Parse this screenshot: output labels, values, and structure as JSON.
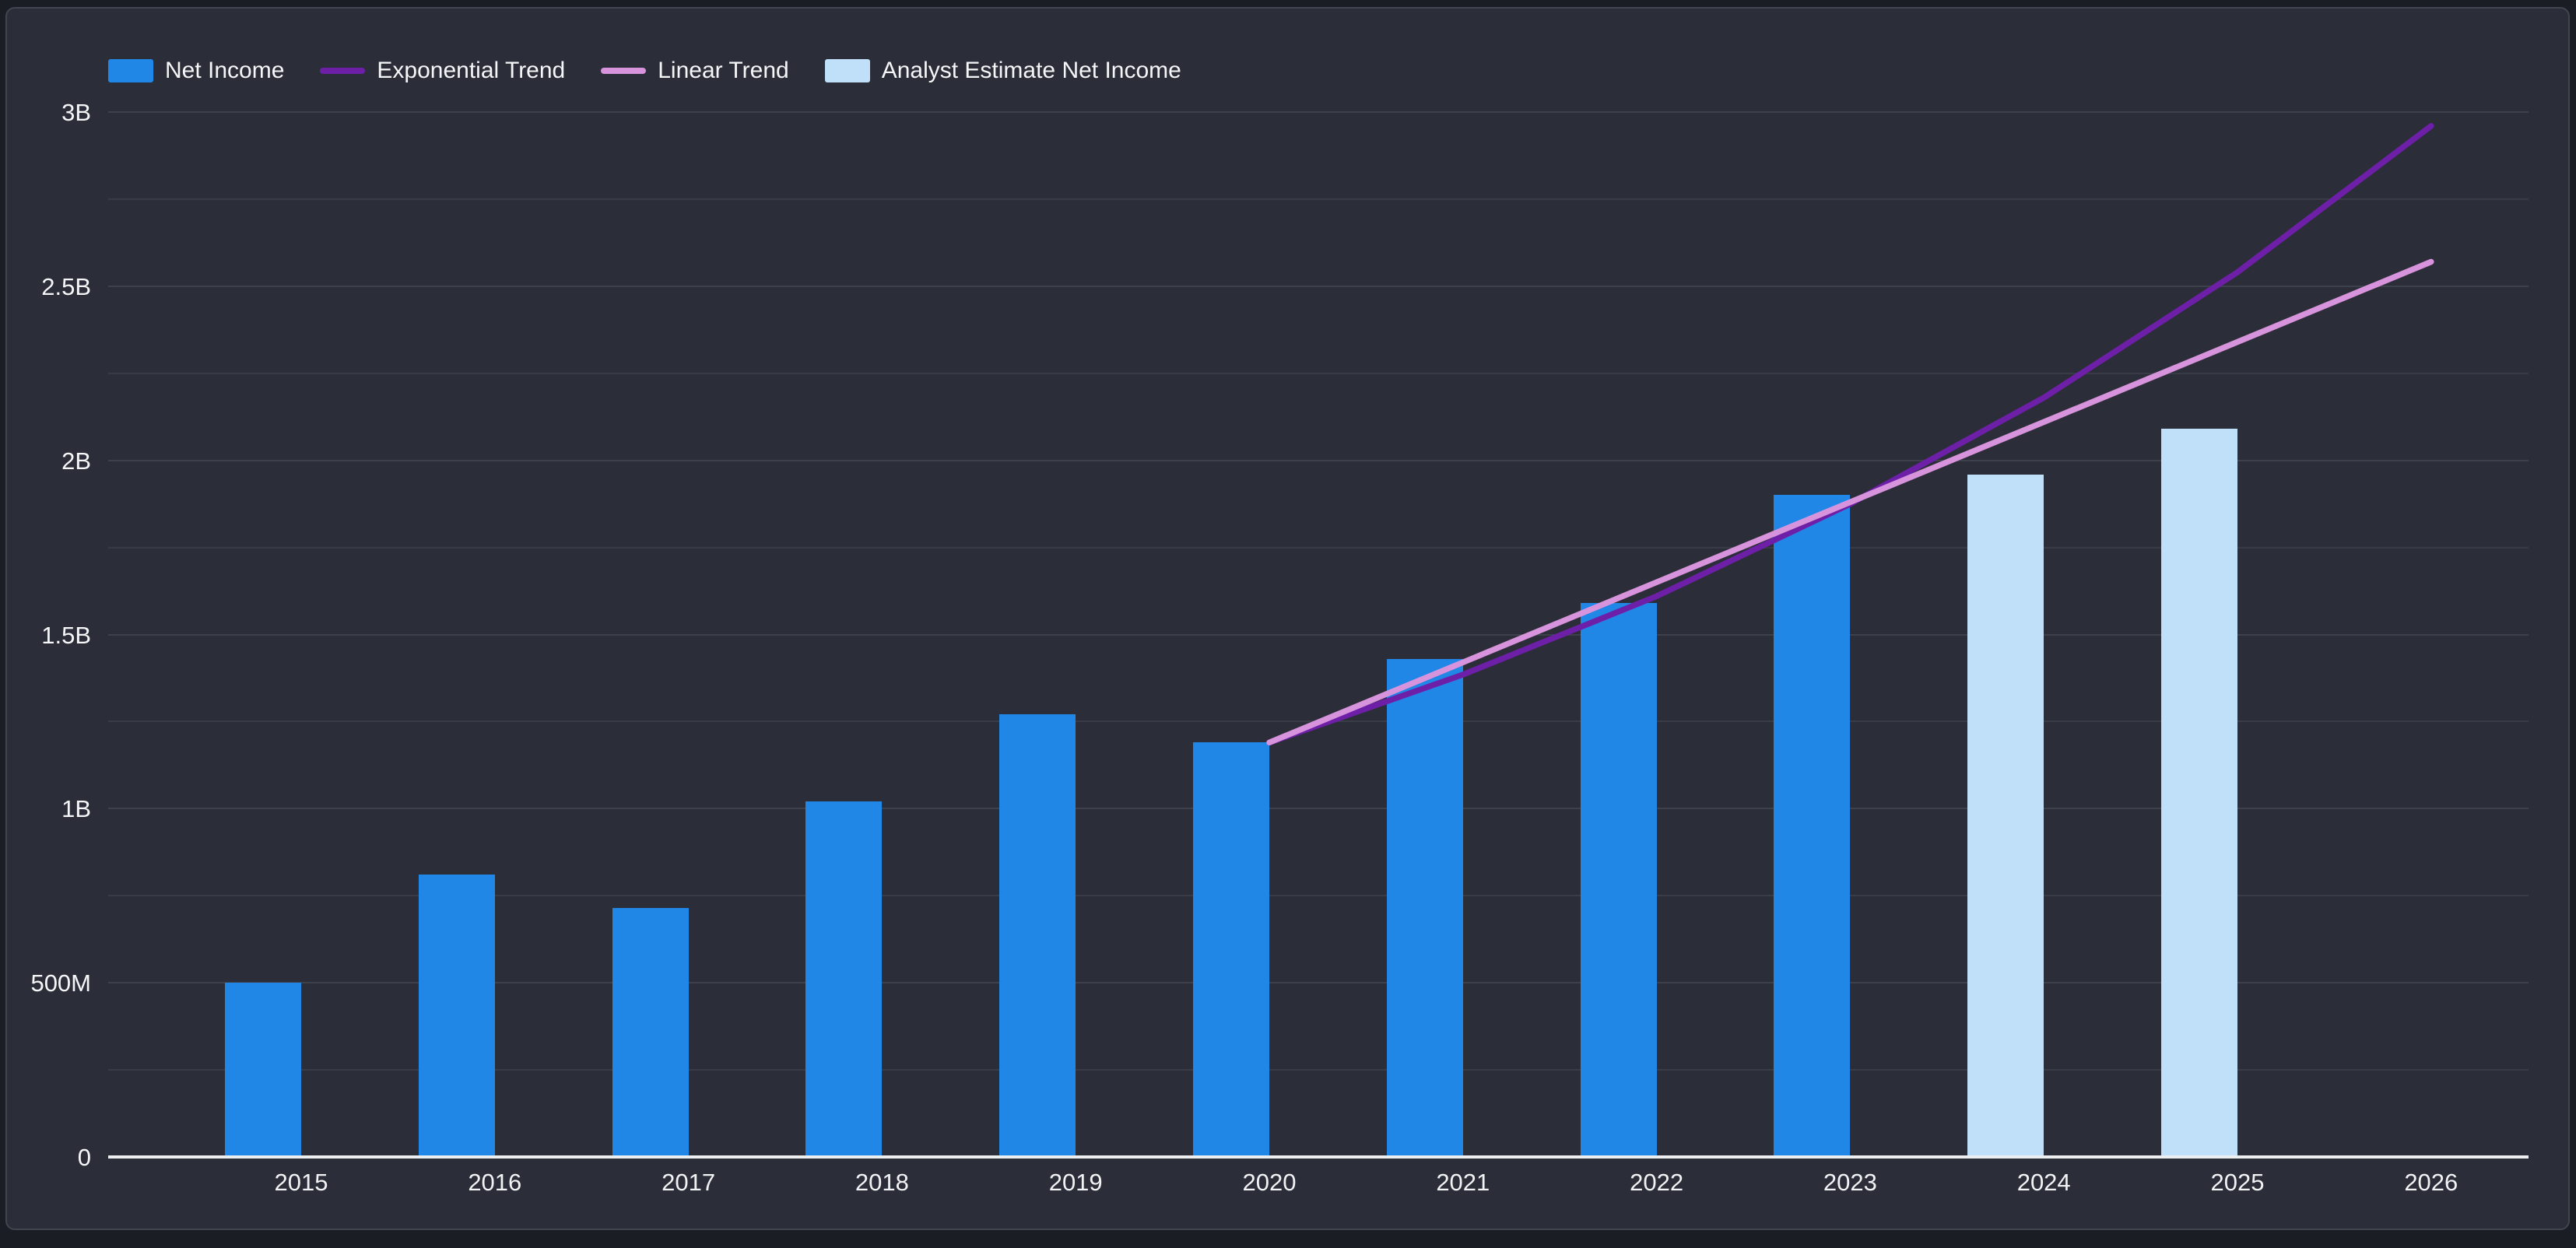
{
  "legend": {
    "items": [
      {
        "label": "Net Income",
        "swatch": "square",
        "color": "#2187e7"
      },
      {
        "label": "Exponential Trend",
        "swatch": "line",
        "color": "#6e1fa8"
      },
      {
        "label": "Linear Trend",
        "swatch": "line",
        "color": "#d793dc"
      },
      {
        "label": "Analyst Estimate Net Income",
        "swatch": "square",
        "color": "#bfe0f8"
      }
    ]
  },
  "colors": {
    "background_outer": "#1a1d23",
    "panel_background": "#2b2e38",
    "panel_border": "#41454f",
    "gridline": "#383c46",
    "axis_line": "#eceef0",
    "text": "#f5f6f8",
    "net_income_bar": "#2187e7",
    "analyst_estimate_bar": "#bfe0f8",
    "exponential_trend": "#6e1fa8",
    "linear_trend": "#d793dc"
  },
  "chart_data": {
    "type": "bar",
    "title": "",
    "xlabel": "",
    "ylabel": "",
    "unit": "millions USD",
    "ylim": [
      0,
      3000
    ],
    "grid": true,
    "minor_grid_step": 250,
    "legend_position": "top-left",
    "categories": [
      "2015",
      "2016",
      "2017",
      "2018",
      "2019",
      "2020",
      "2021",
      "2022",
      "2023",
      "2024",
      "2025",
      "2026"
    ],
    "yticks": [
      {
        "value": 0,
        "label": "0"
      },
      {
        "value": 500,
        "label": "500M"
      },
      {
        "value": 1000,
        "label": "1B"
      },
      {
        "value": 1500,
        "label": "1.5B"
      },
      {
        "value": 2000,
        "label": "2B"
      },
      {
        "value": 2500,
        "label": "2.5B"
      },
      {
        "value": 3000,
        "label": "3B"
      }
    ],
    "series": [
      {
        "name": "Net Income",
        "type": "bar",
        "color": "#2187e7",
        "values": [
          500,
          810,
          715,
          1020,
          1270,
          1190,
          1430,
          1590,
          1900,
          null,
          null,
          null
        ]
      },
      {
        "name": "Analyst Estimate Net Income",
        "type": "bar",
        "color": "#bfe0f8",
        "values": [
          null,
          null,
          null,
          null,
          null,
          null,
          null,
          null,
          null,
          1960,
          2090,
          null
        ]
      },
      {
        "name": "Exponential Trend",
        "type": "line",
        "color": "#6e1fa8",
        "values": [
          null,
          null,
          null,
          null,
          null,
          1190,
          1385,
          1610,
          1875,
          2180,
          2540,
          2960
        ]
      },
      {
        "name": "Linear Trend",
        "type": "line",
        "color": "#d793dc",
        "values": [
          null,
          null,
          null,
          null,
          null,
          1190,
          1420,
          1650,
          1880,
          2110,
          2340,
          2570
        ]
      }
    ]
  }
}
